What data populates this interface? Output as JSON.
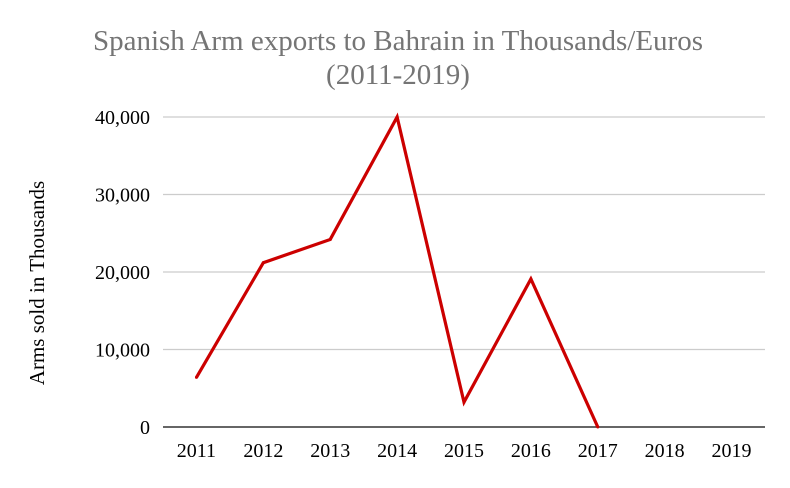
{
  "chart_data": {
    "type": "line",
    "title_line1": "Spanish Arm exports to Bahrain in Thousands/Euros",
    "title_line2": "(2011-2019)",
    "xlabel": "",
    "ylabel": "Arms sold in Thousands",
    "categories": [
      "2011",
      "2012",
      "2013",
      "2014",
      "2015",
      "2016",
      "2017",
      "2018",
      "2019"
    ],
    "series": [
      {
        "values": [
          6400,
          21200,
          24200,
          40000,
          3200,
          19100,
          0,
          null,
          null
        ],
        "color": "#cc0000"
      }
    ],
    "y_ticks": [
      0,
      10000,
      20000,
      30000,
      40000
    ],
    "y_tick_labels": [
      "0",
      "10,000",
      "20,000",
      "30,000",
      "40,000"
    ],
    "ylim": [
      0,
      40000
    ],
    "grid": true,
    "legend": "none"
  }
}
